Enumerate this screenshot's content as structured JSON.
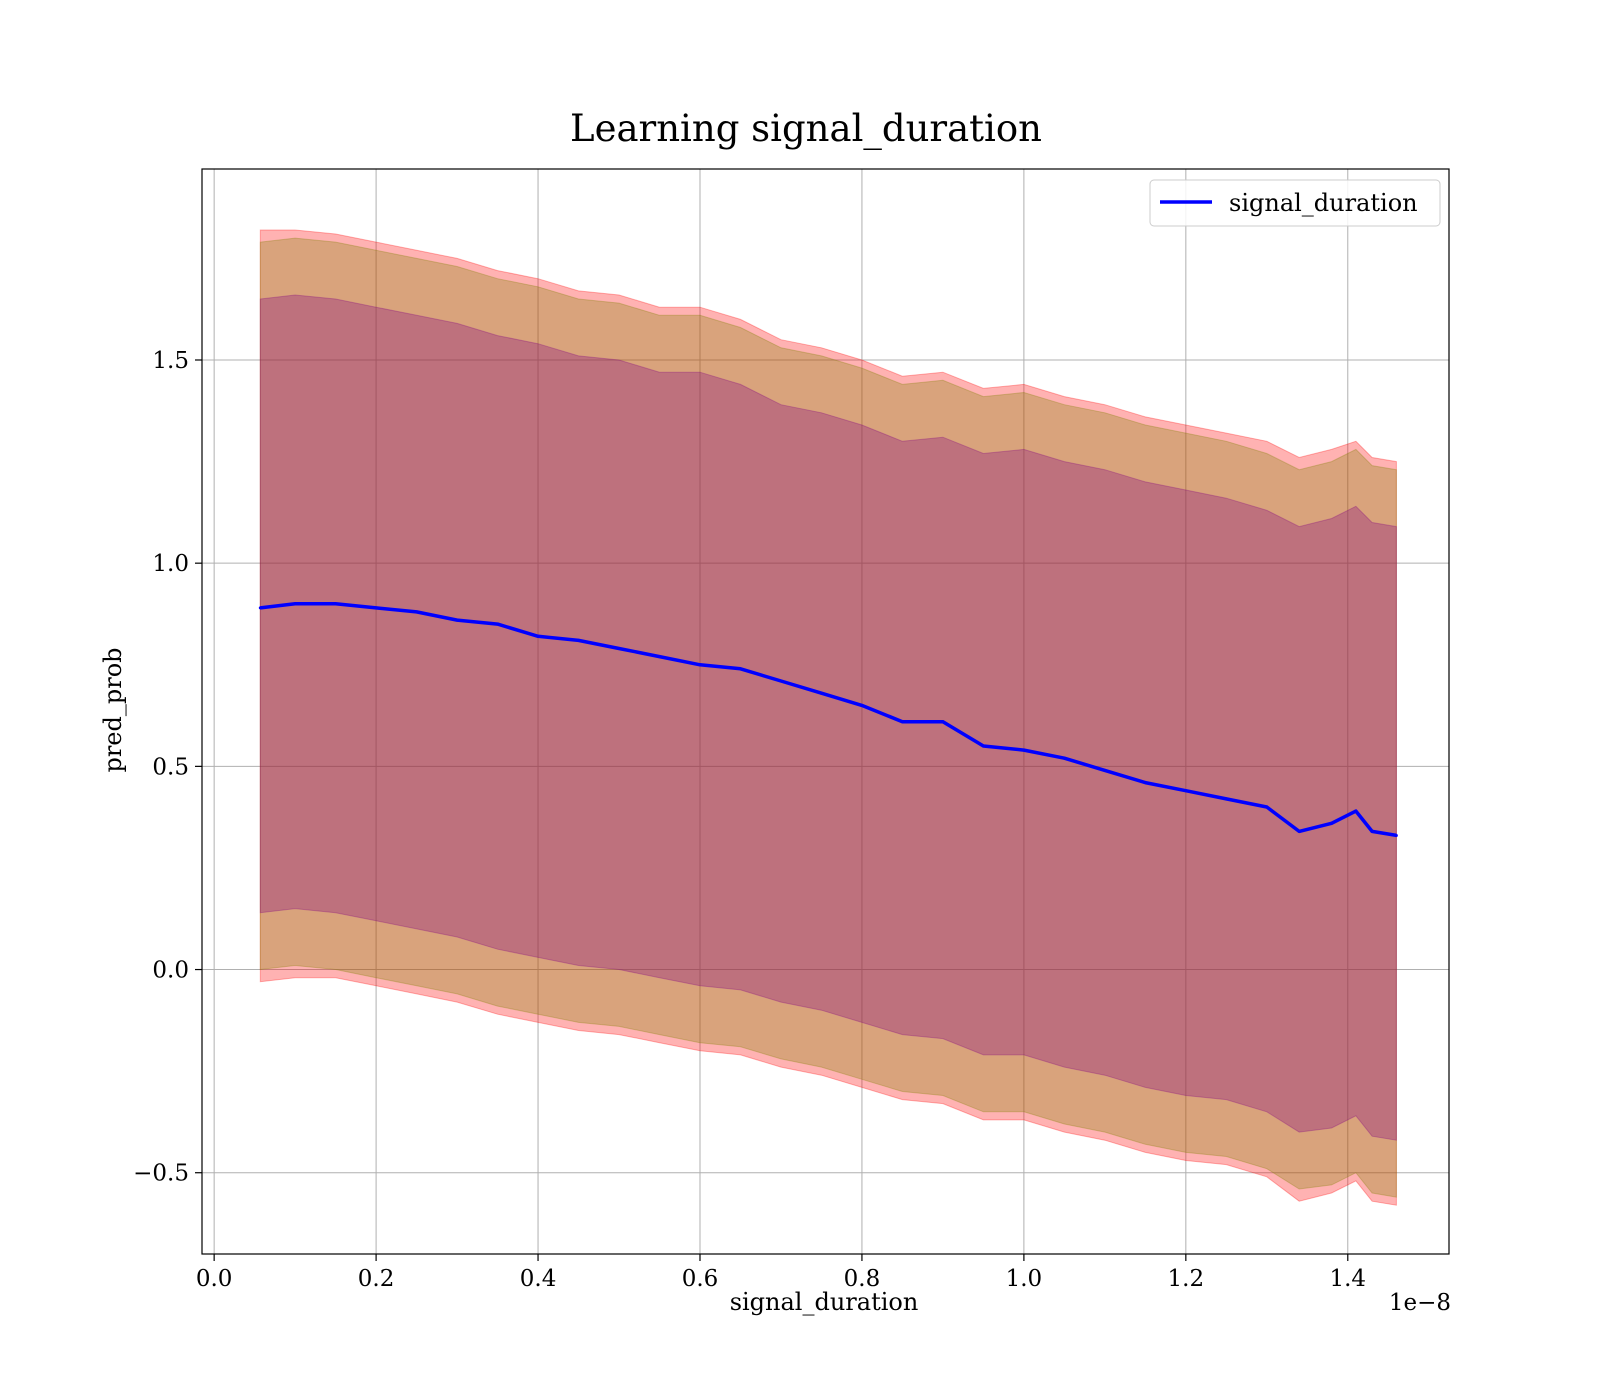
{
  "chart_data": {
    "type": "area",
    "title": "Learning signal_duration",
    "xlabel": "signal_duration",
    "ylabel": "pred_prob",
    "x_offset_label": "1e−8",
    "xlim": [
      -0.015,
      1.525
    ],
    "ylim": [
      -0.7,
      1.97
    ],
    "x_ticks": [
      0.0,
      0.2,
      0.4,
      0.6,
      0.8,
      1.0,
      1.2,
      1.4
    ],
    "x_tick_labels": [
      "0.0",
      "0.2",
      "0.4",
      "0.6",
      "0.8",
      "1.0",
      "1.2",
      "1.4"
    ],
    "y_ticks": [
      -0.5,
      0.0,
      0.5,
      1.0,
      1.5
    ],
    "y_tick_labels": [
      "−0.5",
      "0.0",
      "0.5",
      "1.0",
      "1.5"
    ],
    "grid": true,
    "legend": {
      "position": "top-right",
      "entries": [
        {
          "name": "signal_duration",
          "color": "#0000ff"
        }
      ]
    },
    "x": [
      0.057,
      0.1,
      0.15,
      0.2,
      0.25,
      0.3,
      0.35,
      0.4,
      0.45,
      0.5,
      0.55,
      0.6,
      0.65,
      0.7,
      0.75,
      0.8,
      0.85,
      0.9,
      0.95,
      1.0,
      1.05,
      1.1,
      1.15,
      1.2,
      1.25,
      1.3,
      1.34,
      1.38,
      1.41,
      1.43,
      1.46
    ],
    "series": [
      {
        "name": "signal_duration",
        "color": "#0000ff",
        "values": [
          0.89,
          0.9,
          0.9,
          0.89,
          0.88,
          0.86,
          0.85,
          0.82,
          0.81,
          0.79,
          0.77,
          0.75,
          0.74,
          0.71,
          0.68,
          0.65,
          0.61,
          0.61,
          0.55,
          0.54,
          0.52,
          0.49,
          0.46,
          0.44,
          0.42,
          0.4,
          0.34,
          0.36,
          0.39,
          0.34,
          0.33
        ]
      }
    ],
    "bands": [
      {
        "color": "#ff0000",
        "upper": [
          1.82,
          1.82,
          1.81,
          1.79,
          1.77,
          1.75,
          1.72,
          1.7,
          1.67,
          1.66,
          1.63,
          1.63,
          1.6,
          1.55,
          1.53,
          1.5,
          1.46,
          1.47,
          1.43,
          1.44,
          1.41,
          1.39,
          1.36,
          1.34,
          1.32,
          1.3,
          1.26,
          1.28,
          1.3,
          1.26,
          1.25
        ],
        "lower": [
          -0.03,
          -0.02,
          -0.02,
          -0.04,
          -0.06,
          -0.08,
          -0.11,
          -0.13,
          -0.15,
          -0.16,
          -0.18,
          -0.2,
          -0.21,
          -0.24,
          -0.26,
          -0.29,
          -0.32,
          -0.33,
          -0.37,
          -0.37,
          -0.4,
          -0.42,
          -0.45,
          -0.47,
          -0.48,
          -0.51,
          -0.57,
          -0.55,
          -0.52,
          -0.57,
          -0.58
        ]
      },
      {
        "color": "#808000",
        "upper": [
          1.79,
          1.8,
          1.79,
          1.77,
          1.75,
          1.73,
          1.7,
          1.68,
          1.65,
          1.64,
          1.61,
          1.61,
          1.58,
          1.53,
          1.51,
          1.48,
          1.44,
          1.45,
          1.41,
          1.42,
          1.39,
          1.37,
          1.34,
          1.32,
          1.3,
          1.27,
          1.23,
          1.25,
          1.28,
          1.24,
          1.23
        ],
        "lower": [
          0.0,
          0.01,
          0.0,
          -0.02,
          -0.04,
          -0.06,
          -0.09,
          -0.11,
          -0.13,
          -0.14,
          -0.16,
          -0.18,
          -0.19,
          -0.22,
          -0.24,
          -0.27,
          -0.3,
          -0.31,
          -0.35,
          -0.35,
          -0.38,
          -0.4,
          -0.43,
          -0.45,
          -0.46,
          -0.49,
          -0.54,
          -0.53,
          -0.5,
          -0.55,
          -0.56
        ]
      },
      {
        "color": "#800080",
        "upper": [
          1.65,
          1.66,
          1.65,
          1.63,
          1.61,
          1.59,
          1.56,
          1.54,
          1.51,
          1.5,
          1.47,
          1.47,
          1.44,
          1.39,
          1.37,
          1.34,
          1.3,
          1.31,
          1.27,
          1.28,
          1.25,
          1.23,
          1.2,
          1.18,
          1.16,
          1.13,
          1.09,
          1.11,
          1.14,
          1.1,
          1.09
        ],
        "lower": [
          0.14,
          0.15,
          0.14,
          0.12,
          0.1,
          0.08,
          0.05,
          0.03,
          0.01,
          0.0,
          -0.02,
          -0.04,
          -0.05,
          -0.08,
          -0.1,
          -0.13,
          -0.16,
          -0.17,
          -0.21,
          -0.21,
          -0.24,
          -0.26,
          -0.29,
          -0.31,
          -0.32,
          -0.35,
          -0.4,
          -0.39,
          -0.36,
          -0.41,
          -0.42
        ]
      }
    ]
  }
}
